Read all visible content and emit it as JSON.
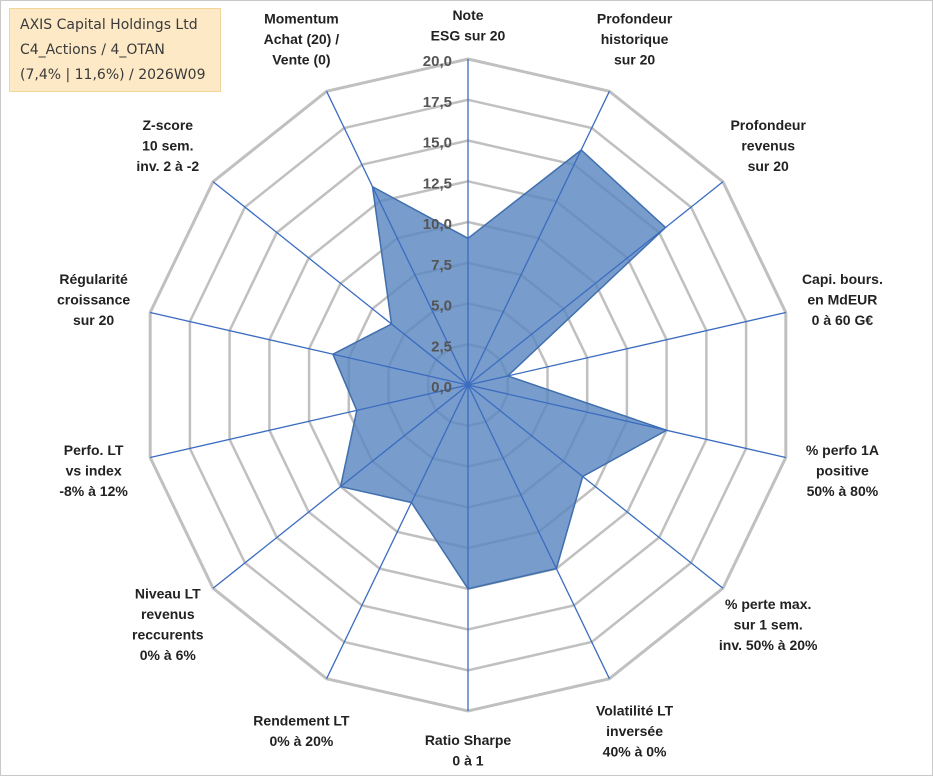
{
  "header": {
    "line1": "AXIS Capital Holdings Ltd",
    "line2": "C4_Actions / 4_OTAN",
    "line3": "(7,4% | 11,6%) / 2026W09"
  },
  "chart_data": {
    "type": "radar",
    "title": "AXIS Capital Holdings Ltd",
    "rmin": 0,
    "rmax": 20,
    "ticks": [
      "0,0",
      "2,5",
      "5,0",
      "7,5",
      "10,0",
      "12,5",
      "15,0",
      "17,5",
      "20,0"
    ],
    "gridlines": true,
    "colors": {
      "grid": "#c0c0c0",
      "spoke": "#3b6cc0",
      "fill": "#5a86c0",
      "stroke": "#3f6fae"
    },
    "axes": [
      {
        "lines": [
          "Note",
          "ESG sur 20"
        ]
      },
      {
        "lines": [
          "Profondeur",
          "historique",
          "sur 20"
        ]
      },
      {
        "lines": [
          "Profondeur",
          "revenus",
          "sur 20"
        ]
      },
      {
        "lines": [
          "Capi. bours.",
          "en MdEUR",
          "0 à 60 G€"
        ]
      },
      {
        "lines": [
          "% perfo 1A",
          "positive",
          "50% à 80%"
        ]
      },
      {
        "lines": [
          "% perte max.",
          "sur 1 sem.",
          "inv. 50% à 20%"
        ]
      },
      {
        "lines": [
          "Volatilité LT",
          "inversée",
          "40% à 0%"
        ]
      },
      {
        "lines": [
          "Ratio Sharpe",
          "0 à 1"
        ]
      },
      {
        "lines": [
          "Rendement LT",
          "0% à 20%"
        ]
      },
      {
        "lines": [
          "Niveau LT",
          "revenus",
          "reccurents",
          "0% à 6%"
        ]
      },
      {
        "lines": [
          "Perfo. LT",
          "vs index",
          "-8% à 12%"
        ]
      },
      {
        "lines": [
          "Régularité",
          "croissance",
          "sur 20"
        ]
      },
      {
        "lines": [
          "Z-score",
          "10 sem.",
          "inv. 2 à -2"
        ]
      },
      {
        "lines": [
          "Momentum",
          "Achat (20) /",
          "Vente (0)"
        ]
      }
    ],
    "series": [
      {
        "name": "AXIS Capital Holdings Ltd",
        "values": [
          9.0,
          16.0,
          15.5,
          2.5,
          12.5,
          9.0,
          12.5,
          12.5,
          8.0,
          10.0,
          7.0,
          8.5,
          6.0,
          13.5
        ]
      }
    ]
  }
}
